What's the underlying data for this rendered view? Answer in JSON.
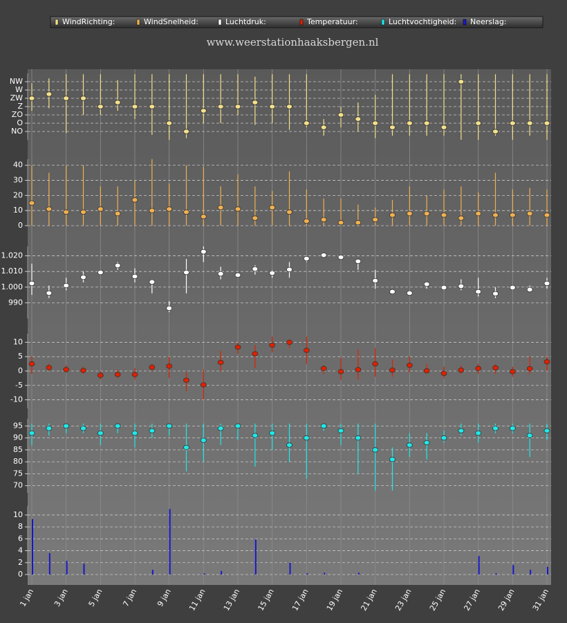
{
  "title": "www.weerstationhaaksbergen.nl",
  "chart_data": [
    {
      "type": "range-dot",
      "name": "WindRichting:",
      "color": "#f4e08c",
      "ylim": [
        0,
        8
      ],
      "yticks": [
        {
          "value": 1,
          "label": "NO"
        },
        {
          "value": 2,
          "label": "O"
        },
        {
          "value": 3,
          "label": "ZO"
        },
        {
          "value": 4,
          "label": "Z"
        },
        {
          "value": 5,
          "label": "ZW"
        },
        {
          "value": 6,
          "label": "W"
        },
        {
          "value": 7,
          "label": "NW"
        }
      ],
      "grid": true,
      "values": [
        5,
        5.5,
        5,
        5,
        4,
        4.5,
        4,
        4,
        2,
        1,
        3.5,
        4,
        4,
        4.5,
        4,
        4,
        2,
        1.5,
        3,
        2.5,
        2,
        1.5,
        2,
        2,
        1.5,
        7,
        2,
        1,
        2,
        2,
        2
      ],
      "low": [
        3.5,
        3.8,
        0.8,
        3,
        3,
        3.5,
        2.5,
        0.6,
        0,
        0.2,
        2,
        2,
        3,
        1.8,
        2,
        1.2,
        1.5,
        0.5,
        1.5,
        1,
        0.2,
        0.5,
        0.5,
        0.5,
        0.5,
        0,
        0,
        0.5,
        0,
        0.5,
        0
      ],
      "high": [
        6.8,
        7.4,
        7.9,
        7.9,
        7.9,
        7.2,
        7.9,
        7.9,
        7.9,
        7.9,
        7.9,
        7.9,
        7.9,
        7.6,
        7.9,
        7.9,
        7.9,
        2.5,
        4,
        4.5,
        5.4,
        7.9,
        7.9,
        7.9,
        7.9,
        7.9,
        7.9,
        7.9,
        7.9,
        7.9,
        7.9
      ]
    },
    {
      "type": "range-dot",
      "name": "WindSnelheid:",
      "color": "#f0b050",
      "ylim": [
        0,
        44
      ],
      "yticks": [
        0,
        10,
        20,
        30,
        40
      ],
      "grid": true,
      "values": [
        15,
        11,
        9,
        9,
        11,
        8,
        17,
        10,
        11,
        9,
        6,
        12,
        11,
        5,
        12,
        9,
        3,
        4,
        2,
        2,
        4,
        7,
        8,
        8,
        7,
        5,
        8,
        7,
        7,
        8,
        7
      ],
      "low": [
        0,
        0,
        0,
        0,
        0,
        0,
        0,
        0,
        0,
        0,
        0,
        0,
        0,
        0,
        0,
        0,
        0,
        0,
        0,
        0,
        0,
        0,
        0,
        0,
        0,
        0,
        0,
        0,
        0,
        0,
        0
      ],
      "high": [
        40,
        35,
        40,
        40,
        26,
        26,
        30,
        44,
        28,
        40,
        39,
        26,
        34,
        26,
        23,
        36,
        24,
        18,
        18,
        14,
        12,
        17,
        26,
        20,
        24,
        26,
        22,
        35,
        24,
        25,
        24
      ]
    },
    {
      "type": "range-dot",
      "name": "Luchtdruk:",
      "color": "#ffffff",
      "ylim": [
        980,
        1026
      ],
      "yticks": [
        990,
        {
          "value": 1000,
          "label": "1.000"
        },
        {
          "value": 1010,
          "label": "1.010"
        },
        {
          "value": 1020,
          "label": "1.020"
        }
      ],
      "grid": true,
      "values": [
        1002.4,
        996.2,
        1001,
        1006.3,
        1009.4,
        1013.8,
        1006.8,
        1003.3,
        986.5,
        1009.4,
        1022.6,
        1008.5,
        1007.7,
        1011.6,
        1009,
        1011.2,
        1018.2,
        1020.4,
        1019.1,
        1016.5,
        1004.1,
        997.1,
        996.2,
        1001.9,
        999.7,
        1000.6,
        997.1,
        995.8,
        999.7,
        998.4,
        1002.4
      ],
      "low": [
        995,
        993,
        998,
        1003,
        1008,
        1011,
        1003,
        996,
        984,
        996,
        1016,
        1005,
        1006,
        1008,
        1006,
        1006,
        1016,
        1019,
        1018,
        1011,
        999,
        996,
        995,
        999,
        998,
        998,
        994,
        993,
        998,
        997,
        999
      ],
      "high": [
        1015,
        1001,
        1006,
        1010,
        1011,
        1016,
        1012,
        1005,
        991,
        1018,
        1026,
        1013,
        1009,
        1014,
        1011,
        1016,
        1020,
        1021,
        1020,
        1018,
        1011,
        998,
        998,
        1003,
        1001,
        1005,
        1006,
        1000,
        1001,
        1001,
        1006
      ]
    },
    {
      "type": "range-dot",
      "name": "Temperatuur:",
      "color": "#e02000",
      "ylim": [
        -13,
        13
      ],
      "yticks": [
        -10,
        -5,
        0,
        5,
        10
      ],
      "grid": true,
      "values": [
        2.5,
        1.2,
        0.5,
        0.2,
        -1.5,
        -1.2,
        -1.2,
        1.3,
        1.7,
        -3.2,
        -4.8,
        3,
        8.3,
        6,
        9,
        10,
        7.2,
        0.9,
        -0.2,
        0.5,
        2.5,
        0.3,
        2,
        0.1,
        -0.8,
        0.3,
        0.9,
        1.1,
        -0.2,
        0.8,
        3.2
      ],
      "low": [
        -1,
        0,
        -0.5,
        -1,
        -3,
        -2.5,
        -3,
        0,
        -2.5,
        -7,
        -10,
        0,
        6,
        1,
        6.5,
        8,
        2.5,
        -1,
        -3,
        -3,
        -2,
        -2,
        -0.5,
        -1,
        -2.5,
        -1,
        -1,
        -1,
        -2,
        -1,
        0
      ],
      "high": [
        5,
        2.5,
        2,
        1.5,
        0,
        0.5,
        1,
        2.5,
        5,
        -0.5,
        0.5,
        7,
        10,
        9,
        12,
        11,
        12,
        2,
        4.5,
        7.5,
        8,
        4,
        5,
        2.5,
        1.5,
        2,
        2.5,
        2.5,
        1.5,
        5,
        5
      ]
    },
    {
      "type": "range-dot",
      "name": "Luchtvochtigheid:",
      "color": "#20e8e8",
      "ylim": [
        67,
        98
      ],
      "yticks": [
        70,
        75,
        80,
        85,
        90,
        95
      ],
      "grid": true,
      "values": [
        92,
        94,
        95,
        94,
        92,
        95,
        92,
        93,
        95,
        86,
        89,
        94,
        95,
        91,
        92,
        87,
        90,
        95,
        93,
        90,
        85,
        81,
        87,
        88,
        90,
        93,
        92,
        94,
        94,
        91,
        93
      ],
      "low": [
        87,
        91,
        92,
        92,
        87,
        92,
        86,
        90,
        91,
        76,
        80,
        87,
        89,
        78,
        85,
        80,
        73,
        93,
        87,
        75,
        68,
        68,
        82,
        81,
        88,
        91,
        88,
        92,
        92,
        82,
        89
      ],
      "high": [
        96,
        96,
        96,
        96,
        96,
        96,
        96,
        96,
        96,
        96,
        96,
        96,
        96,
        96,
        96,
        96,
        96,
        96,
        96,
        96,
        96,
        86,
        92,
        92,
        93,
        96,
        96,
        96,
        96,
        96,
        96
      ]
    },
    {
      "type": "bar",
      "name": "Neerslag:",
      "color": "#1818c8",
      "ylim": [
        0,
        11.5
      ],
      "yticks": [
        0,
        2,
        4,
        6,
        8,
        10
      ],
      "grid": true,
      "values": [
        9.3,
        3.6,
        2.3,
        1.8,
        0,
        0,
        0,
        0.8,
        11,
        0,
        0.2,
        0.6,
        0,
        5.9,
        0,
        2,
        0.2,
        0.3,
        0,
        0.3,
        0,
        0,
        0,
        0,
        0,
        0,
        3.1,
        0.2,
        1.6,
        0.8,
        1.3
      ],
      "categories": [
        "1 jan",
        null,
        "3 jan",
        null,
        "5 jan",
        null,
        "7 jan",
        null,
        "9 jan",
        null,
        "11 jan",
        null,
        "13 jan",
        null,
        "15 jan",
        null,
        "17 jan",
        null,
        "19 jan",
        null,
        "21 jan",
        null,
        "23 jan",
        null,
        "25 jan",
        null,
        "27 jan",
        null,
        "29 jan",
        null,
        "31 jan"
      ]
    }
  ]
}
